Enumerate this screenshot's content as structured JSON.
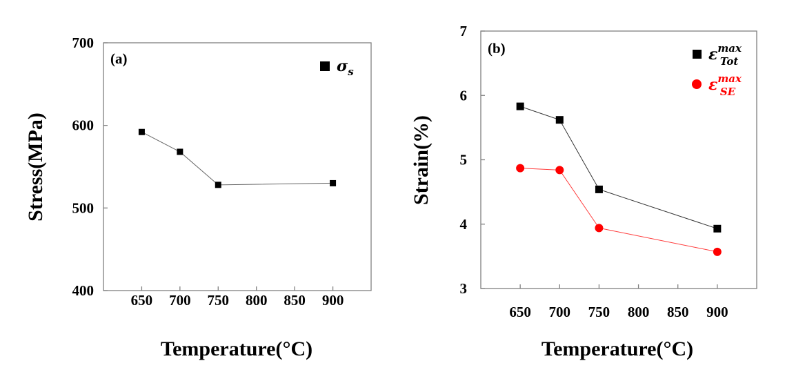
{
  "chart_data": [
    {
      "panel": "(a)",
      "type": "line",
      "xlabel": "Temperature(°C)",
      "ylabel": "Stress(MPa)",
      "x": [
        650,
        700,
        750,
        900
      ],
      "xticks": [
        "650",
        "700",
        "750",
        "800",
        "850",
        "900"
      ],
      "yticks": [
        "400",
        "500",
        "600",
        "700"
      ],
      "xlim": [
        600,
        950
      ],
      "ylim": [
        400,
        700
      ],
      "legend_position": "top-right",
      "series": [
        {
          "name": "σ",
          "sub": "s",
          "sup": "",
          "marker": "square",
          "marker_color": "#000000",
          "line_color": "#666666",
          "values": [
            592,
            568,
            528,
            530
          ]
        }
      ]
    },
    {
      "panel": "(b)",
      "type": "line",
      "xlabel": "Temperature(°C)",
      "ylabel": "Strain(%)",
      "x": [
        650,
        700,
        750,
        900
      ],
      "xticks": [
        "650",
        "700",
        "750",
        "800",
        "850",
        "900"
      ],
      "yticks": [
        "3",
        "4",
        "5",
        "6",
        "7"
      ],
      "xlim": [
        600,
        950
      ],
      "ylim": [
        3,
        7
      ],
      "legend_position": "top-right",
      "series": [
        {
          "name": "ε",
          "sup": "max",
          "sub": "Tot",
          "marker": "square",
          "marker_color": "#000000",
          "line_color": "#333333",
          "values": [
            5.83,
            5.62,
            4.54,
            3.93
          ]
        },
        {
          "name": "ε",
          "sup": "max",
          "sub": "SE",
          "marker": "circle",
          "marker_color": "#ff0000",
          "line_color": "#ff3b3b",
          "values": [
            4.87,
            4.84,
            3.94,
            3.57
          ]
        }
      ]
    }
  ]
}
